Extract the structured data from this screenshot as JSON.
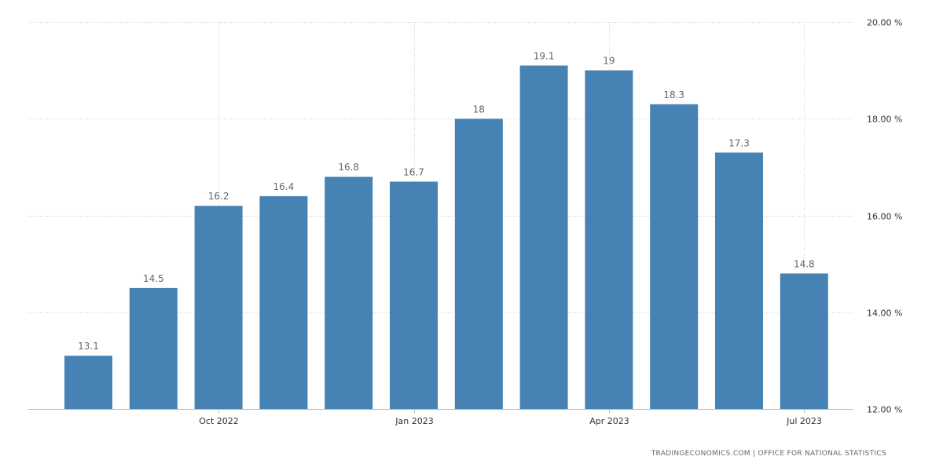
{
  "chart_data": {
    "type": "bar",
    "categories": [
      "Aug 2022",
      "Sep 2022",
      "Oct 2022",
      "Nov 2022",
      "Dec 2022",
      "Jan 2023",
      "Feb 2023",
      "Mar 2023",
      "Apr 2023",
      "May 2023",
      "Jun 2023",
      "Jul 2023"
    ],
    "values": [
      13.1,
      14.5,
      16.2,
      16.4,
      16.8,
      16.7,
      18,
      19.1,
      19,
      18.3,
      17.3,
      14.8
    ],
    "value_labels": [
      "13.1",
      "14.5",
      "16.2",
      "16.4",
      "16.8",
      "16.7",
      "18",
      "19.1",
      "19",
      "18.3",
      "17.3",
      "14.8"
    ],
    "ylim": [
      12,
      20
    ],
    "y_ticks": [
      12,
      14,
      16,
      18,
      20
    ],
    "y_tick_labels": [
      "12.00 %",
      "14.00 %",
      "16.00 %",
      "18.00 %",
      "20.00 %"
    ],
    "x_tick_labels": [
      {
        "category": "Oct 2022",
        "label": "Oct 2022"
      },
      {
        "category": "Jan 2023",
        "label": "Jan 2023"
      },
      {
        "category": "Apr 2023",
        "label": "Apr 2023"
      },
      {
        "category": "Jul 2023",
        "label": "Jul 2023"
      }
    ],
    "y_axis_side": "right",
    "grid": true,
    "bar_color": "#4682b4",
    "title": "",
    "xlabel": "",
    "ylabel": ""
  },
  "source_note": "TRADINGECONOMICS.COM  |  OFFICE FOR NATIONAL STATISTICS"
}
